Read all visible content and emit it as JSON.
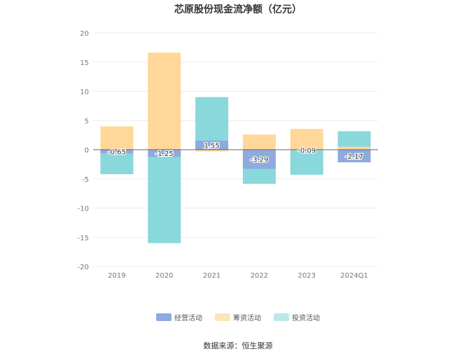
{
  "chart_data": {
    "type": "bar",
    "stacked": true,
    "title": "芯原股份现金流净额（亿元）",
    "categories": [
      "2019",
      "2020",
      "2021",
      "2022",
      "2023",
      "2024Q1"
    ],
    "series": [
      {
        "name": "经营活动",
        "color": "#8eaadf",
        "values": [
          -0.65,
          -1.25,
          1.55,
          -3.29,
          -0.09,
          -2.17
        ]
      },
      {
        "name": "筹资活动",
        "color": "#ffd899",
        "values": [
          4.0,
          16.6,
          -0.3,
          2.6,
          3.55,
          0.5
        ]
      },
      {
        "name": "投资活动",
        "color": "#88d8dc",
        "values": [
          -3.55,
          -14.75,
          7.45,
          -2.55,
          -4.2,
          2.65
        ]
      }
    ],
    "data_labels": [
      "-0.65",
      "-1.25",
      "1.55",
      "-3.29",
      "-0.09",
      "-2.17"
    ],
    "ylim": [
      -20,
      20
    ],
    "yticks": [
      20,
      15,
      10,
      5,
      0,
      -5,
      -10,
      -15,
      -20
    ],
    "grid": true,
    "legend_position": "bottom",
    "legend_colors": [
      "#8eaadf",
      "#ffe4bb",
      "#bde8ea"
    ]
  },
  "source_text": "数据来源：恒生聚源"
}
